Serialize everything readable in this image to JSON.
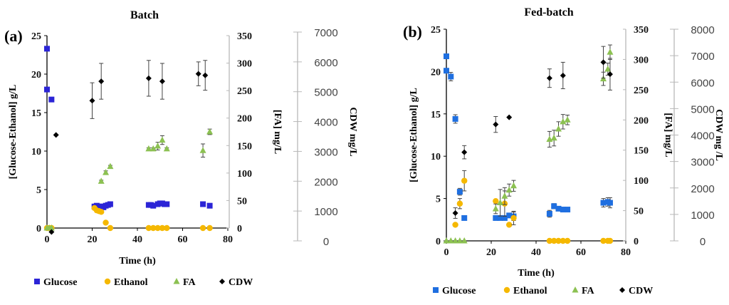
{
  "chart_data": [
    {
      "panel_label": "(a)",
      "title": "Batch",
      "type": "scatter",
      "xlabel": "Time (h)",
      "ylabel": "[Glucose-Ethanol] g/L",
      "y2label": "[FA] mg/L",
      "y3label": "CDW mg/L",
      "xlim": [
        0,
        80
      ],
      "ylim": [
        0,
        25
      ],
      "y2lim": [
        0,
        350
      ],
      "y3lim": [
        0,
        7000
      ],
      "xticks": [
        "0",
        "20",
        "40",
        "60",
        "80"
      ],
      "yticks": [
        "0",
        "5",
        "10",
        "15",
        "20",
        "25"
      ],
      "y2ticks": [
        "0",
        "50",
        "100",
        "150",
        "200",
        "250",
        "300",
        "350"
      ],
      "y3ticks": [
        "0",
        "1000",
        "2000",
        "3000",
        "4000",
        "5000",
        "6000",
        "7000"
      ],
      "grid": false,
      "legend_position": "bottom",
      "series": [
        {
          "name": "Glucose",
          "axis": "y",
          "marker": "square",
          "color": "#2b24d6",
          "points": [
            [
              0,
              23.3
            ],
            [
              0,
              18.0
            ],
            [
              2,
              16.7
            ],
            [
              21,
              2.8
            ],
            [
              22,
              2.9
            ],
            [
              23,
              2.8
            ],
            [
              24,
              2.8
            ],
            [
              25,
              2.7
            ],
            [
              26,
              2.9
            ],
            [
              27,
              3.0
            ],
            [
              28,
              3.1
            ],
            [
              45,
              3.0
            ],
            [
              46,
              3.0
            ],
            [
              47,
              2.9
            ],
            [
              49,
              3.1
            ],
            [
              50,
              3.2
            ],
            [
              51,
              3.2
            ],
            [
              52,
              3.1
            ],
            [
              53,
              3.1
            ],
            [
              69,
              3.1
            ],
            [
              72,
              2.9
            ]
          ],
          "errors": []
        },
        {
          "name": "Ethanol",
          "axis": "y",
          "marker": "circle",
          "color": "#f5b800",
          "points": [
            [
              0,
              0
            ],
            [
              1,
              0
            ],
            [
              2,
              0
            ],
            [
              21,
              2.6
            ],
            [
              22,
              2.3
            ],
            [
              23,
              2.2
            ],
            [
              24,
              2.1
            ],
            [
              26,
              0.7
            ],
            [
              28,
              0
            ],
            [
              45,
              0
            ],
            [
              47,
              0
            ],
            [
              49,
              0
            ],
            [
              51,
              0
            ],
            [
              53,
              0
            ],
            [
              69,
              0
            ],
            [
              72,
              0
            ]
          ],
          "errors": []
        },
        {
          "name": "FA",
          "axis": "y2",
          "marker": "triangle",
          "color": "#8cc152",
          "points": [
            [
              0,
              0
            ],
            [
              1,
              0
            ],
            [
              2,
              0
            ],
            [
              24,
              85
            ],
            [
              26,
              101
            ],
            [
              28,
              112
            ],
            [
              45,
              144
            ],
            [
              47,
              144
            ],
            [
              49,
              149
            ],
            [
              51,
              160
            ],
            [
              53,
              144
            ],
            [
              69,
              141
            ],
            [
              72,
              175
            ]
          ],
          "errors": [
            0,
            0,
            0,
            2,
            3,
            2,
            2,
            2,
            7,
            8,
            2,
            12,
            5
          ]
        },
        {
          "name": "CDW",
          "axis": "y3",
          "marker": "diamond",
          "color": "#000000",
          "points": [
            [
              2,
              300
            ],
            [
              4,
              3550
            ],
            [
              20,
              4700
            ],
            [
              24,
              5350
            ],
            [
              45,
              5450
            ],
            [
              51,
              5350
            ],
            [
              67,
              5600
            ],
            [
              70,
              5550
            ]
          ],
          "errors": [
            0,
            0,
            600,
            600,
            600,
            600,
            400,
            500
          ]
        }
      ]
    },
    {
      "panel_label": "(b)",
      "title": "Fed-batch",
      "type": "scatter",
      "xlabel": "Time (h)",
      "ylabel": "[Glucose-Ethanol] g/L",
      "y2label": "[FA] mg/L",
      "y3label": "CDW mg /L",
      "xlim": [
        0,
        80
      ],
      "ylim": [
        0,
        25
      ],
      "y2lim": [
        0,
        350
      ],
      "y3lim": [
        0,
        8000
      ],
      "xticks": [
        "0",
        "20",
        "40",
        "60",
        "80"
      ],
      "yticks": [
        "0",
        "5",
        "10",
        "15",
        "20",
        "25"
      ],
      "y2ticks": [
        "0",
        "50",
        "100",
        "150",
        "200",
        "250",
        "300",
        "350"
      ],
      "y3ticks": [
        "0",
        "1000",
        "2000",
        "3000",
        "4000",
        "5000",
        "6000",
        "7000",
        "8000"
      ],
      "grid": false,
      "legend_position": "bottom",
      "series": [
        {
          "name": "Glucose",
          "axis": "y",
          "marker": "square",
          "color": "#1f6fe0",
          "points": [
            [
              0,
              21.8
            ],
            [
              0,
              20.1
            ],
            [
              2,
              19.4
            ],
            [
              4,
              14.4
            ],
            [
              6,
              5.8
            ],
            [
              8,
              2.7
            ],
            [
              22,
              2.7
            ],
            [
              24,
              2.7
            ],
            [
              26,
              2.7
            ],
            [
              28,
              3.0
            ],
            [
              30,
              2.9
            ],
            [
              46,
              3.2
            ],
            [
              48,
              4.1
            ],
            [
              50,
              3.8
            ],
            [
              52,
              3.7
            ],
            [
              54,
              3.7
            ],
            [
              70,
              4.5
            ],
            [
              72,
              4.6
            ],
            [
              73,
              4.5
            ]
          ],
          "errors": [
            0,
            0,
            0.5,
            0.5,
            0.4,
            0,
            0,
            0,
            0,
            0,
            0.5,
            0.4,
            0.3,
            0,
            0,
            0,
            0.5,
            0.5,
            0.6
          ]
        },
        {
          "name": "Ethanol",
          "axis": "y",
          "marker": "circle",
          "color": "#f5b800",
          "points": [
            [
              4,
              1.9
            ],
            [
              6,
              4.4
            ],
            [
              8,
              7.1
            ],
            [
              22,
              4.7
            ],
            [
              26,
              4.4
            ],
            [
              28,
              1.9
            ],
            [
              30,
              2.7
            ],
            [
              46,
              0
            ],
            [
              48,
              0
            ],
            [
              50,
              0
            ],
            [
              52,
              0
            ],
            [
              54,
              0
            ],
            [
              70,
              0
            ],
            [
              72,
              0
            ],
            [
              73,
              0
            ]
          ],
          "errors": [
            0,
            0.6,
            1.2,
            0,
            1.5,
            0,
            0.8,
            0,
            0,
            0,
            0,
            0,
            0,
            0,
            0
          ]
        },
        {
          "name": "FA",
          "axis": "y2",
          "marker": "triangle",
          "color": "#8cc152",
          "points": [
            [
              0,
              0
            ],
            [
              2,
              0
            ],
            [
              4,
              0
            ],
            [
              6,
              0
            ],
            [
              8,
              0
            ],
            [
              22,
              53
            ],
            [
              24,
              63
            ],
            [
              26,
              74
            ],
            [
              28,
              84
            ],
            [
              30,
              91
            ],
            [
              46,
              168
            ],
            [
              48,
              170
            ],
            [
              50,
              185
            ],
            [
              52,
              197
            ],
            [
              54,
              200
            ],
            [
              70,
              268
            ],
            [
              72,
              284
            ],
            [
              73,
              312
            ]
          ],
          "errors": [
            0,
            0,
            0,
            0,
            0,
            8,
            22,
            14,
            10,
            9,
            13,
            13,
            12,
            12,
            8,
            11,
            10,
            12
          ]
        },
        {
          "name": "CDW",
          "axis": "y3",
          "marker": "diamond",
          "color": "#000000",
          "points": [
            [
              4,
              1050
            ],
            [
              8,
              3350
            ],
            [
              22,
              4400
            ],
            [
              28,
              4670
            ],
            [
              46,
              6150
            ],
            [
              52,
              6250
            ],
            [
              70,
              6750
            ],
            [
              73,
              6300
            ]
          ],
          "errors": [
            200,
            250,
            300,
            0,
            350,
            500,
            600,
            600
          ]
        }
      ]
    }
  ],
  "legend": [
    {
      "label": "Glucose"
    },
    {
      "label": "Ethanol"
    },
    {
      "label": "FA"
    },
    {
      "label": "CDW"
    }
  ]
}
